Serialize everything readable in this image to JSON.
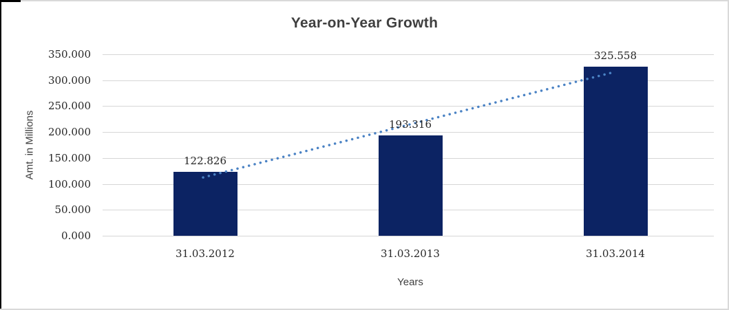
{
  "chart_data": {
    "type": "bar",
    "title": "Year-on-Year Growth",
    "categories": [
      "31.03.2012",
      "31.03.2013",
      "31.03.2014"
    ],
    "values": [
      122.826,
      193.316,
      325.558
    ],
    "value_labels": [
      "122.826",
      "193.316",
      "325.558"
    ],
    "xlabel": "Years",
    "ylabel": "Amt. in Millions",
    "ylim": [
      0,
      350
    ],
    "ytick_values": [
      0,
      50,
      100,
      150,
      200,
      250,
      300,
      350
    ],
    "ytick_labels": [
      "0.000",
      "50.000",
      "100.000",
      "150.000",
      "200.000",
      "250.000",
      "300.000",
      "350.000"
    ],
    "grid": true,
    "legend": "none",
    "bar_color": "#0c2363",
    "gridline_color": "#d6d6d6",
    "text_color": "#262626",
    "title_color": "#3f3f3f",
    "trendline": {
      "type": "linear",
      "style": "dotted",
      "color": "#4a82c4",
      "start_value": 112.5,
      "end_value": 315.4
    }
  }
}
